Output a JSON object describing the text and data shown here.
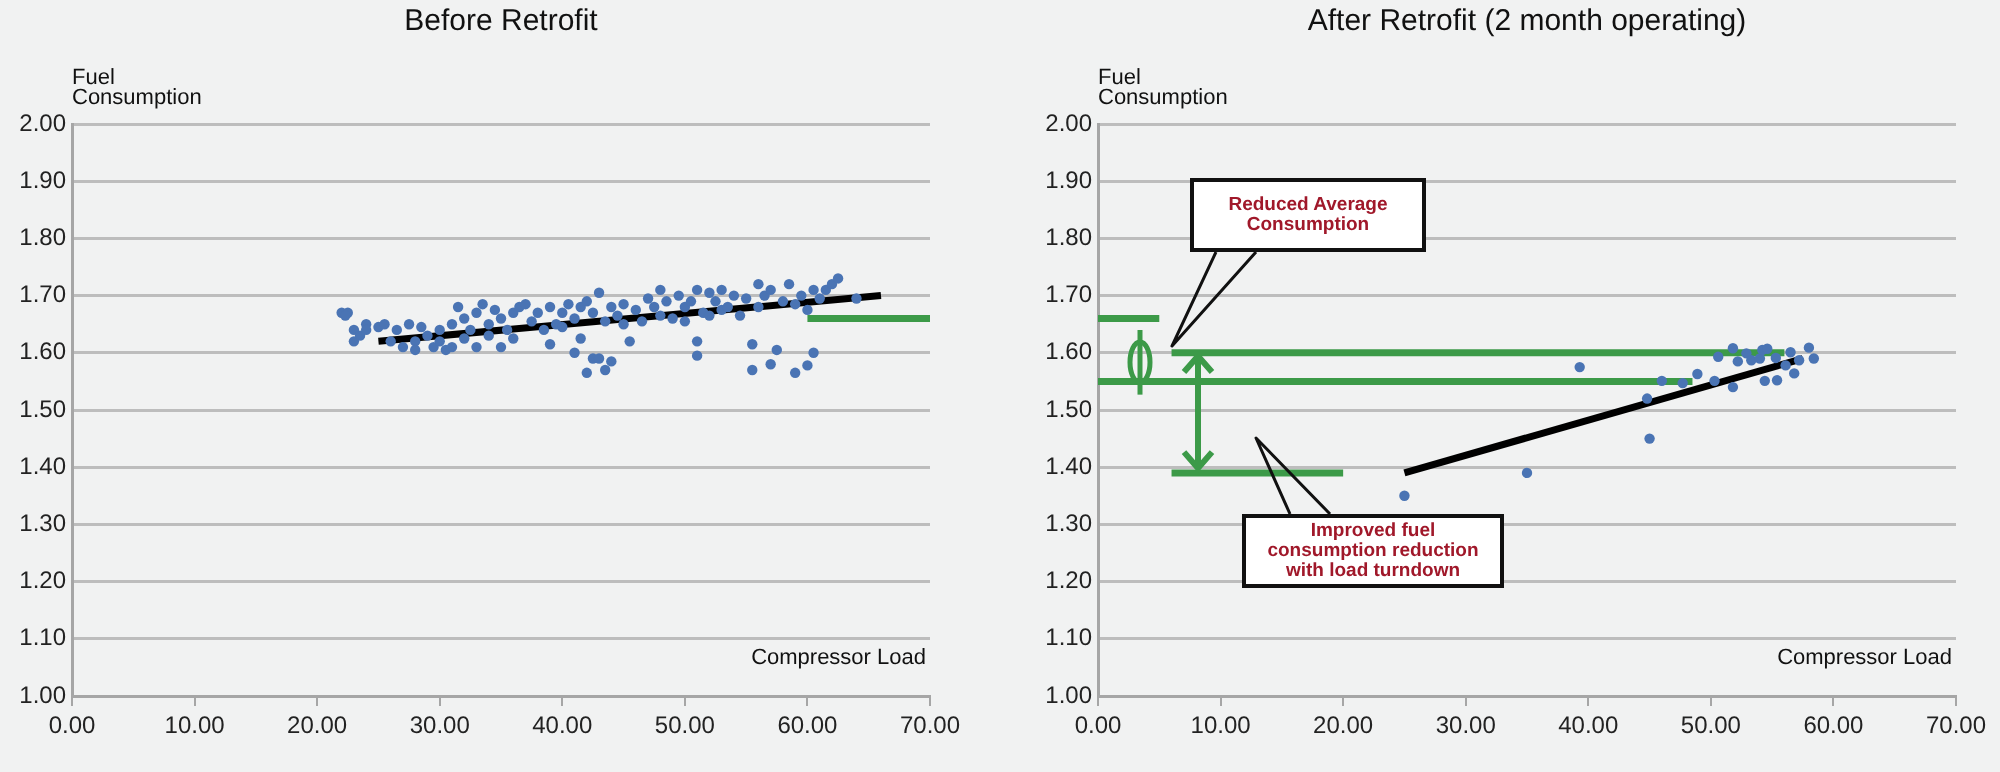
{
  "chart_data": [
    {
      "type": "scatter",
      "title": "Before Retrofit",
      "xlabel": "Compressor Load",
      "ylabel": "Fuel Consumption",
      "xlim": [
        0,
        70
      ],
      "ylim": [
        1,
        2
      ],
      "xticks": [
        {
          "value": 0,
          "label": "0.00"
        },
        {
          "value": 10,
          "label": "10.00"
        },
        {
          "value": 20,
          "label": "20.00"
        },
        {
          "value": 30,
          "label": "30.00"
        },
        {
          "value": 40,
          "label": "40.00"
        },
        {
          "value": 50,
          "label": "50.00"
        },
        {
          "value": 60,
          "label": "60.00"
        },
        {
          "value": 70,
          "label": "70.00"
        }
      ],
      "yticks": [
        {
          "value": 1,
          "label": "1.00"
        },
        {
          "value": 1.1,
          "label": "1.10"
        },
        {
          "value": 1.2,
          "label": "1.20"
        },
        {
          "value": 1.3,
          "label": "1.30"
        },
        {
          "value": 1.4,
          "label": "1.40"
        },
        {
          "value": 1.5,
          "label": "1.50"
        },
        {
          "value": 1.6,
          "label": "1.60"
        },
        {
          "value": 1.7,
          "label": "1.70"
        },
        {
          "value": 1.8,
          "label": "1.80"
        },
        {
          "value": 1.9,
          "label": "1.90"
        },
        {
          "value": 2,
          "label": "2.00"
        }
      ],
      "grid": "y",
      "marker": "circle",
      "series": [
        {
          "color": "#4a74b4",
          "x": [
            22,
            22.5,
            22.3,
            23,
            23,
            23.5,
            24,
            24,
            25,
            25.5,
            26,
            26.5,
            27,
            27.5,
            28,
            28,
            28.5,
            29,
            29.5,
            30,
            30,
            30.5,
            31,
            31,
            31.5,
            32,
            32,
            32.5,
            33,
            33,
            33.5,
            34,
            34,
            34.5,
            35,
            35,
            35.5,
            36,
            36,
            36.5,
            37,
            37.5,
            38,
            38.5,
            39,
            39,
            39.5,
            40,
            40,
            40.5,
            41,
            41,
            41.5,
            41.5,
            42,
            42,
            42.5,
            42.5,
            43,
            43,
            43.5,
            43.5,
            44,
            44,
            44.5,
            45,
            45,
            45.5,
            46,
            46.5,
            47,
            47.5,
            48,
            48,
            48.5,
            49,
            49.5,
            50,
            50,
            50.5,
            51,
            51,
            51,
            51.5,
            52,
            52,
            52.5,
            53,
            53,
            53.5,
            54,
            54.5,
            55,
            55.5,
            55.5,
            56,
            56,
            56.5,
            57,
            57,
            57.5,
            58,
            58.5,
            59,
            59,
            59.5,
            60,
            60,
            60.5,
            60.5,
            61,
            61.5,
            62,
            62.5,
            64
          ],
          "values": [
            1.67,
            1.67,
            1.665,
            1.62,
            1.64,
            1.63,
            1.65,
            1.64,
            1.645,
            1.65,
            1.62,
            1.64,
            1.61,
            1.65,
            1.62,
            1.605,
            1.645,
            1.63,
            1.61,
            1.64,
            1.62,
            1.605,
            1.65,
            1.61,
            1.68,
            1.625,
            1.66,
            1.64,
            1.67,
            1.61,
            1.685,
            1.65,
            1.63,
            1.675,
            1.66,
            1.61,
            1.64,
            1.67,
            1.625,
            1.68,
            1.685,
            1.655,
            1.67,
            1.64,
            1.68,
            1.615,
            1.65,
            1.67,
            1.645,
            1.685,
            1.66,
            1.6,
            1.68,
            1.625,
            1.69,
            1.565,
            1.67,
            1.59,
            1.705,
            1.59,
            1.57,
            1.655,
            1.68,
            1.585,
            1.665,
            1.685,
            1.65,
            1.62,
            1.675,
            1.655,
            1.695,
            1.68,
            1.71,
            1.665,
            1.69,
            1.66,
            1.7,
            1.68,
            1.655,
            1.69,
            1.71,
            1.62,
            1.595,
            1.67,
            1.705,
            1.665,
            1.69,
            1.71,
            1.675,
            1.68,
            1.7,
            1.665,
            1.695,
            1.615,
            1.57,
            1.72,
            1.68,
            1.7,
            1.71,
            1.58,
            1.605,
            1.69,
            1.72,
            1.565,
            1.685,
            1.7,
            1.578,
            1.675,
            1.6,
            1.71,
            1.695,
            1.71,
            1.72,
            1.73,
            1.695
          ]
        },
        {
          "type": "line",
          "marker": "none",
          "color": "#000000",
          "x": [
            25,
            66
          ],
          "values": [
            1.62,
            1.7
          ]
        },
        {
          "type": "line",
          "marker": "none",
          "color": "#3c9a48",
          "x": [
            60,
            70
          ],
          "values": [
            1.66,
            1.66
          ]
        }
      ]
    },
    {
      "type": "scatter",
      "title": "After Retrofit (2 month operating)",
      "xlabel": "Compressor Load",
      "ylabel": "Fuel Consumption",
      "xlim": [
        0,
        70
      ],
      "ylim": [
        1,
        2
      ],
      "xticks": [
        {
          "value": 0,
          "label": "0.00"
        },
        {
          "value": 10,
          "label": "10.00"
        },
        {
          "value": 20,
          "label": "20.00"
        },
        {
          "value": 30,
          "label": "30.00"
        },
        {
          "value": 40,
          "label": "40.00"
        },
        {
          "value": 50,
          "label": "50.00"
        },
        {
          "value": 60,
          "label": "60.00"
        },
        {
          "value": 70,
          "label": "70.00"
        }
      ],
      "yticks": [
        {
          "value": 1,
          "label": "1.00"
        },
        {
          "value": 1.1,
          "label": "1.10"
        },
        {
          "value": 1.2,
          "label": "1.20"
        },
        {
          "value": 1.3,
          "label": "1.30"
        },
        {
          "value": 1.4,
          "label": "1.40"
        },
        {
          "value": 1.5,
          "label": "1.50"
        },
        {
          "value": 1.6,
          "label": "1.60"
        },
        {
          "value": 1.7,
          "label": "1.70"
        },
        {
          "value": 1.8,
          "label": "1.80"
        },
        {
          "value": 1.9,
          "label": "1.90"
        },
        {
          "value": 2,
          "label": "2.00"
        }
      ],
      "grid": "y",
      "marker": "circle",
      "annotations": [
        "Reduced Average Consumption",
        "Improved fuel consumption reduction with load turndown"
      ],
      "series": [
        {
          "type": "line",
          "marker": "none",
          "color": "#3c9a48",
          "x": [
            0,
            5
          ],
          "values": [
            1.66,
            1.66
          ]
        },
        {
          "type": "line",
          "marker": "none",
          "color": "#3c9a48",
          "x": [
            6,
            56
          ],
          "values": [
            1.6,
            1.6
          ]
        },
        {
          "type": "line",
          "marker": "none",
          "color": "#3c9a48",
          "x": [
            0,
            48.5
          ],
          "values": [
            1.55,
            1.55
          ]
        },
        {
          "type": "line",
          "marker": "none",
          "color": "#3c9a48",
          "x": [
            6,
            20
          ],
          "values": [
            1.39,
            1.39
          ]
        },
        {
          "color": "#4a74b4",
          "x": [
            25,
            35,
            39.3,
            45,
            44.8,
            46,
            47.7,
            48.9,
            50.3,
            50.6,
            51.8,
            51.8,
            52.2,
            52.9,
            53.3,
            54,
            54.2,
            54.6,
            54.4,
            55.4,
            55.3,
            56.1,
            56.5,
            56.8,
            57.2,
            58,
            58.4
          ],
          "values": [
            1.35,
            1.39,
            1.575,
            1.45,
            1.52,
            1.551,
            1.547,
            1.563,
            1.551,
            1.593,
            1.608,
            1.54,
            1.585,
            1.599,
            1.587,
            1.59,
            1.605,
            1.607,
            1.551,
            1.552,
            1.591,
            1.578,
            1.601,
            1.564,
            1.587,
            1.609,
            1.59
          ]
        },
        {
          "type": "line",
          "marker": "none",
          "color": "#000000",
          "x": [
            25,
            57.5
          ],
          "values": [
            1.39,
            1.59
          ]
        }
      ]
    }
  ]
}
